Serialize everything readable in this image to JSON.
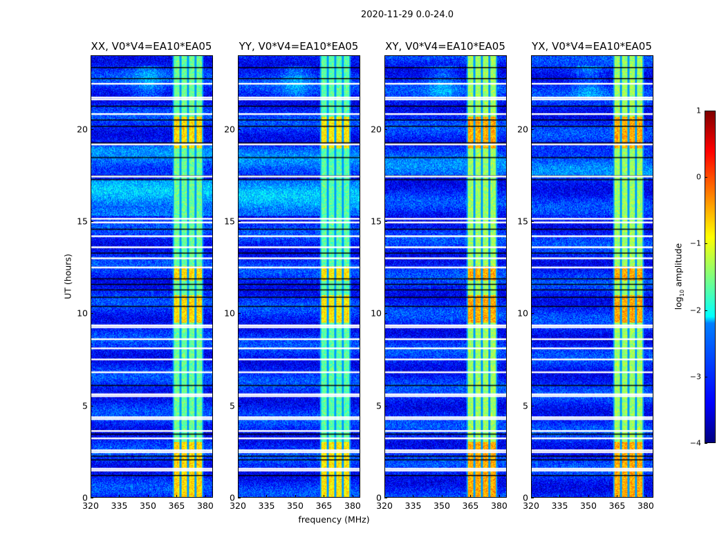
{
  "chart_data": {
    "type": "heatmap",
    "title": "2020-11-29 0.0-24.0",
    "xlabel": "frequency (MHz)",
    "ylabel": "UT (hours)",
    "xlim": [
      320,
      384
    ],
    "ylim": [
      0,
      24
    ],
    "xticks": [
      320,
      335,
      350,
      365,
      380
    ],
    "yticks": [
      0,
      5,
      10,
      15,
      20
    ],
    "panels": [
      {
        "title": "XX, V0*V4=EA10*EA05",
        "pol": "XX",
        "band_gain": 1.0
      },
      {
        "title": "YY, V0*V4=EA10*EA05",
        "pol": "YY",
        "band_gain": 1.05
      },
      {
        "title": "XY, V0*V4=EA10*EA05",
        "pol": "XY",
        "band_gain": 0.85
      },
      {
        "title": "YX, V0*V4=EA10*EA05",
        "pol": "YX",
        "band_gain": 0.85
      }
    ],
    "rfi_band_mhz": [
      363,
      379
    ],
    "rfi_subband_edges_mhz": [
      363,
      367,
      371,
      375,
      379
    ],
    "strong_rfi_time_ranges_h": [
      [
        19.0,
        20.7
      ],
      [
        9.5,
        11.0
      ],
      [
        0.0,
        3.0
      ],
      [
        11.8,
        12.6
      ]
    ],
    "background_log_amplitude": -3.2,
    "band_log_amplitude": -1.6,
    "flagged_times_h": [
      22.5,
      21.75,
      21.65,
      20.85,
      19.2,
      17.45,
      15.15,
      14.95,
      9.35,
      9.25,
      8.6,
      8.1,
      7.5,
      6.8,
      5.6,
      5.5,
      4.35,
      4.25,
      3.6,
      3.2,
      2.55,
      2.45,
      1.55,
      1.45,
      14.2,
      13.6,
      13.0,
      12.5
    ],
    "gap_times_h": [
      23.4,
      22.8,
      21.3,
      20.55,
      20.2,
      19.3,
      18.5,
      17.5,
      17.3,
      14.6,
      13.3,
      11.9,
      11.6,
      11.3,
      10.9,
      10.4,
      6.1,
      3.45,
      2.25,
      2.05,
      1.2
    ],
    "colorbar": {
      "label": "log10 amplitude",
      "label_main": "log",
      "label_sub": "10",
      "label_rest": " amplitude",
      "range": [
        -4,
        1
      ],
      "ticks": [
        1,
        0,
        -1,
        -2,
        -3,
        -4
      ],
      "tick_labels": [
        "1",
        "0",
        "−1",
        "−2",
        "−3",
        "−4"
      ],
      "colormap": "jet"
    }
  }
}
